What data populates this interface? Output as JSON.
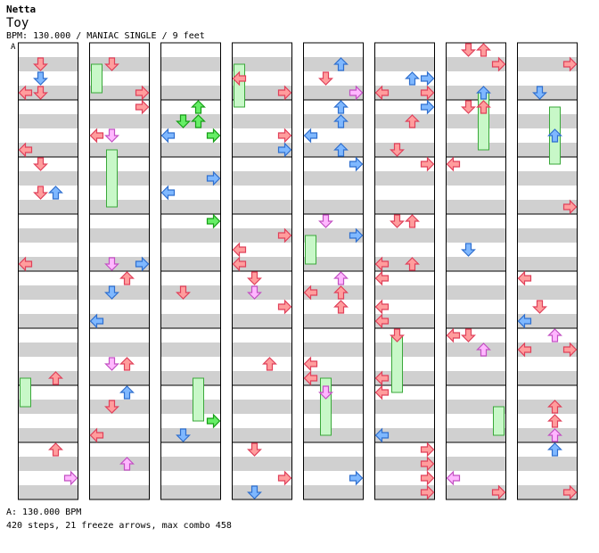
{
  "song": {
    "artist": "Netta",
    "title": "Toy",
    "info": "BPM: 130.000 / MANIAC SINGLE / 9 feet"
  },
  "section_marker": "A",
  "footer": {
    "bpm_line": "A: 130.000 BPM",
    "stats_line": "420 steps, 21 freeze arrows, max combo 458"
  },
  "colors": {
    "quarter": "#ff9d9d",
    "quarter_stroke": "#e0405a",
    "eighth": "#7fb8ff",
    "eighth_stroke": "#2f6fcf",
    "sixteenth": "#ffb7ff",
    "sixteenth_stroke": "#c250c2",
    "other": "#66ee66",
    "other_stroke": "#169e16",
    "freeze": "#c8f8c8",
    "freeze_stroke": "#3aa83a",
    "band": "#d0d0d0",
    "measure_line": "#000000"
  },
  "chart_data": {
    "type": "step_chart",
    "lanes": [
      "left",
      "down",
      "up",
      "right"
    ],
    "measures_per_column": 8,
    "column_count": 8,
    "arrow_icons": [
      "left-arrow-icon",
      "down-arrow-icon",
      "up-arrow-icon",
      "right-arrow-icon"
    ]
  }
}
